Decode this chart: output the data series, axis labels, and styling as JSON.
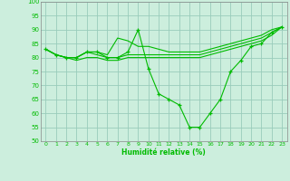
{
  "background_color": "#cceedd",
  "grid_color": "#99ccbb",
  "line_color": "#00bb00",
  "xlabel": "Humidité relative (%)",
  "xlim": [
    -0.5,
    23.5
  ],
  "ylim": [
    50,
    100
  ],
  "yticks": [
    50,
    55,
    60,
    65,
    70,
    75,
    80,
    85,
    90,
    95,
    100
  ],
  "xticks": [
    0,
    1,
    2,
    3,
    4,
    5,
    6,
    7,
    8,
    9,
    10,
    11,
    12,
    13,
    14,
    15,
    16,
    17,
    18,
    19,
    20,
    21,
    22,
    23
  ],
  "series": [
    {
      "x": [
        0,
        1,
        2,
        3,
        4,
        5,
        6,
        7,
        8,
        9,
        10,
        11,
        12,
        13,
        14,
        15,
        16,
        17,
        18,
        19,
        20,
        21,
        22,
        23
      ],
      "y": [
        83,
        81,
        80,
        80,
        82,
        82,
        80,
        80,
        82,
        90,
        76,
        67,
        65,
        63,
        55,
        55,
        60,
        65,
        75,
        79,
        84,
        85,
        89,
        91
      ],
      "marker": true
    },
    {
      "x": [
        0,
        1,
        2,
        3,
        4,
        5,
        6,
        7,
        8,
        9,
        10,
        11,
        12,
        13,
        14,
        15,
        16,
        17,
        18,
        19,
        20,
        21,
        22,
        23
      ],
      "y": [
        83,
        81,
        80,
        80,
        82,
        82,
        81,
        87,
        86,
        84,
        84,
        83,
        82,
        82,
        82,
        82,
        83,
        84,
        85,
        86,
        87,
        88,
        90,
        91
      ],
      "marker": false
    },
    {
      "x": [
        0,
        1,
        2,
        3,
        4,
        5,
        6,
        7,
        8,
        9,
        10,
        11,
        12,
        13,
        14,
        15,
        16,
        17,
        18,
        19,
        20,
        21,
        22,
        23
      ],
      "y": [
        83,
        81,
        80,
        80,
        82,
        81,
        80,
        80,
        81,
        81,
        81,
        81,
        81,
        81,
        81,
        81,
        82,
        83,
        84,
        85,
        86,
        87,
        89,
        91
      ],
      "marker": false
    },
    {
      "x": [
        0,
        1,
        2,
        3,
        4,
        5,
        6,
        7,
        8,
        9,
        10,
        11,
        12,
        13,
        14,
        15,
        16,
        17,
        18,
        19,
        20,
        21,
        22,
        23
      ],
      "y": [
        83,
        81,
        80,
        79,
        80,
        80,
        79,
        79,
        80,
        80,
        80,
        80,
        80,
        80,
        80,
        80,
        81,
        82,
        83,
        84,
        85,
        86,
        88,
        91
      ],
      "marker": false
    }
  ]
}
